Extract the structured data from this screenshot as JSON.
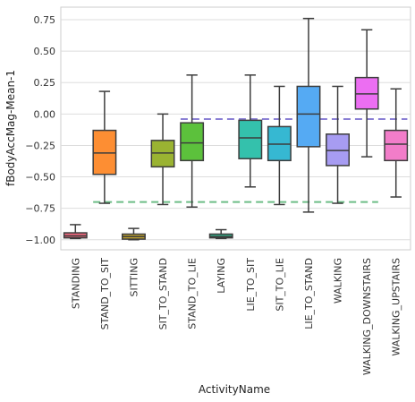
{
  "chart_data": {
    "type": "box",
    "xlabel": "ActivityName",
    "ylabel": "fBodyAccMag-Mean-1",
    "ylim": [
      -1.08,
      0.85
    ],
    "yticks": [
      0.75,
      0.5,
      0.25,
      0.0,
      -0.25,
      -0.5,
      -0.75,
      -1.0
    ],
    "ytick_labels": [
      "0.75",
      "0.50",
      "0.25",
      "0.00",
      "−0.25",
      "−0.50",
      "−0.75",
      "−1.00"
    ],
    "grid": true,
    "categories": [
      "STANDING",
      "STAND_TO_SIT",
      "SITTING",
      "SIT_TO_STAND",
      "STAND_TO_LIE",
      "LAYING",
      "LIE_TO_SIT",
      "SIT_TO_LIE",
      "LIE_TO_STAND",
      "WALKING",
      "WALKING_DOWNSTAIRS",
      "WALKING_UPSTAIRS"
    ],
    "boxes": [
      {
        "min": -0.99,
        "q1": -0.985,
        "median": -0.97,
        "q3": -0.945,
        "max": -0.88,
        "color": "#e8647a"
      },
      {
        "min": -0.71,
        "q1": -0.48,
        "median": -0.31,
        "q3": -0.13,
        "max": 0.18,
        "color": "#fd8e33"
      },
      {
        "min": -1.0,
        "q1": -0.995,
        "median": -0.975,
        "q3": -0.955,
        "max": -0.91,
        "color": "#c0a22c"
      },
      {
        "min": -0.72,
        "q1": -0.42,
        "median": -0.31,
        "q3": -0.21,
        "max": 0.0,
        "color": "#9ab332"
      },
      {
        "min": -0.74,
        "q1": -0.37,
        "median": -0.23,
        "q3": -0.07,
        "max": 0.31,
        "color": "#5cc13c"
      },
      {
        "min": -0.99,
        "q1": -0.985,
        "median": -0.975,
        "q3": -0.955,
        "max": -0.92,
        "color": "#2fae86"
      },
      {
        "min": -0.58,
        "q1": -0.355,
        "median": -0.19,
        "q3": -0.05,
        "max": 0.31,
        "color": "#34c1ac"
      },
      {
        "min": -0.72,
        "q1": -0.37,
        "median": -0.24,
        "q3": -0.1,
        "max": 0.22,
        "color": "#36b8d2"
      },
      {
        "min": -0.78,
        "q1": -0.26,
        "median": 0.0,
        "q3": 0.22,
        "max": 0.76,
        "color": "#55aaf3"
      },
      {
        "min": -0.71,
        "q1": -0.41,
        "median": -0.29,
        "q3": -0.16,
        "max": 0.22,
        "color": "#a79cf2"
      },
      {
        "min": -0.34,
        "q1": 0.04,
        "median": 0.16,
        "q3": 0.29,
        "max": 0.67,
        "color": "#ec6ef2"
      },
      {
        "min": -0.66,
        "q1": -0.37,
        "median": -0.24,
        "q3": -0.13,
        "max": 0.2,
        "color": "#f27dc9"
      }
    ],
    "reference_lines": [
      {
        "y": -0.04,
        "x_from_category": 4,
        "x_to_category": 11,
        "style": "dashed",
        "color": "#8a7fd4"
      },
      {
        "y": -0.7,
        "x_from_category": 1,
        "x_to_category": 10,
        "style": "dashed",
        "color": "#6dbd86"
      }
    ]
  }
}
